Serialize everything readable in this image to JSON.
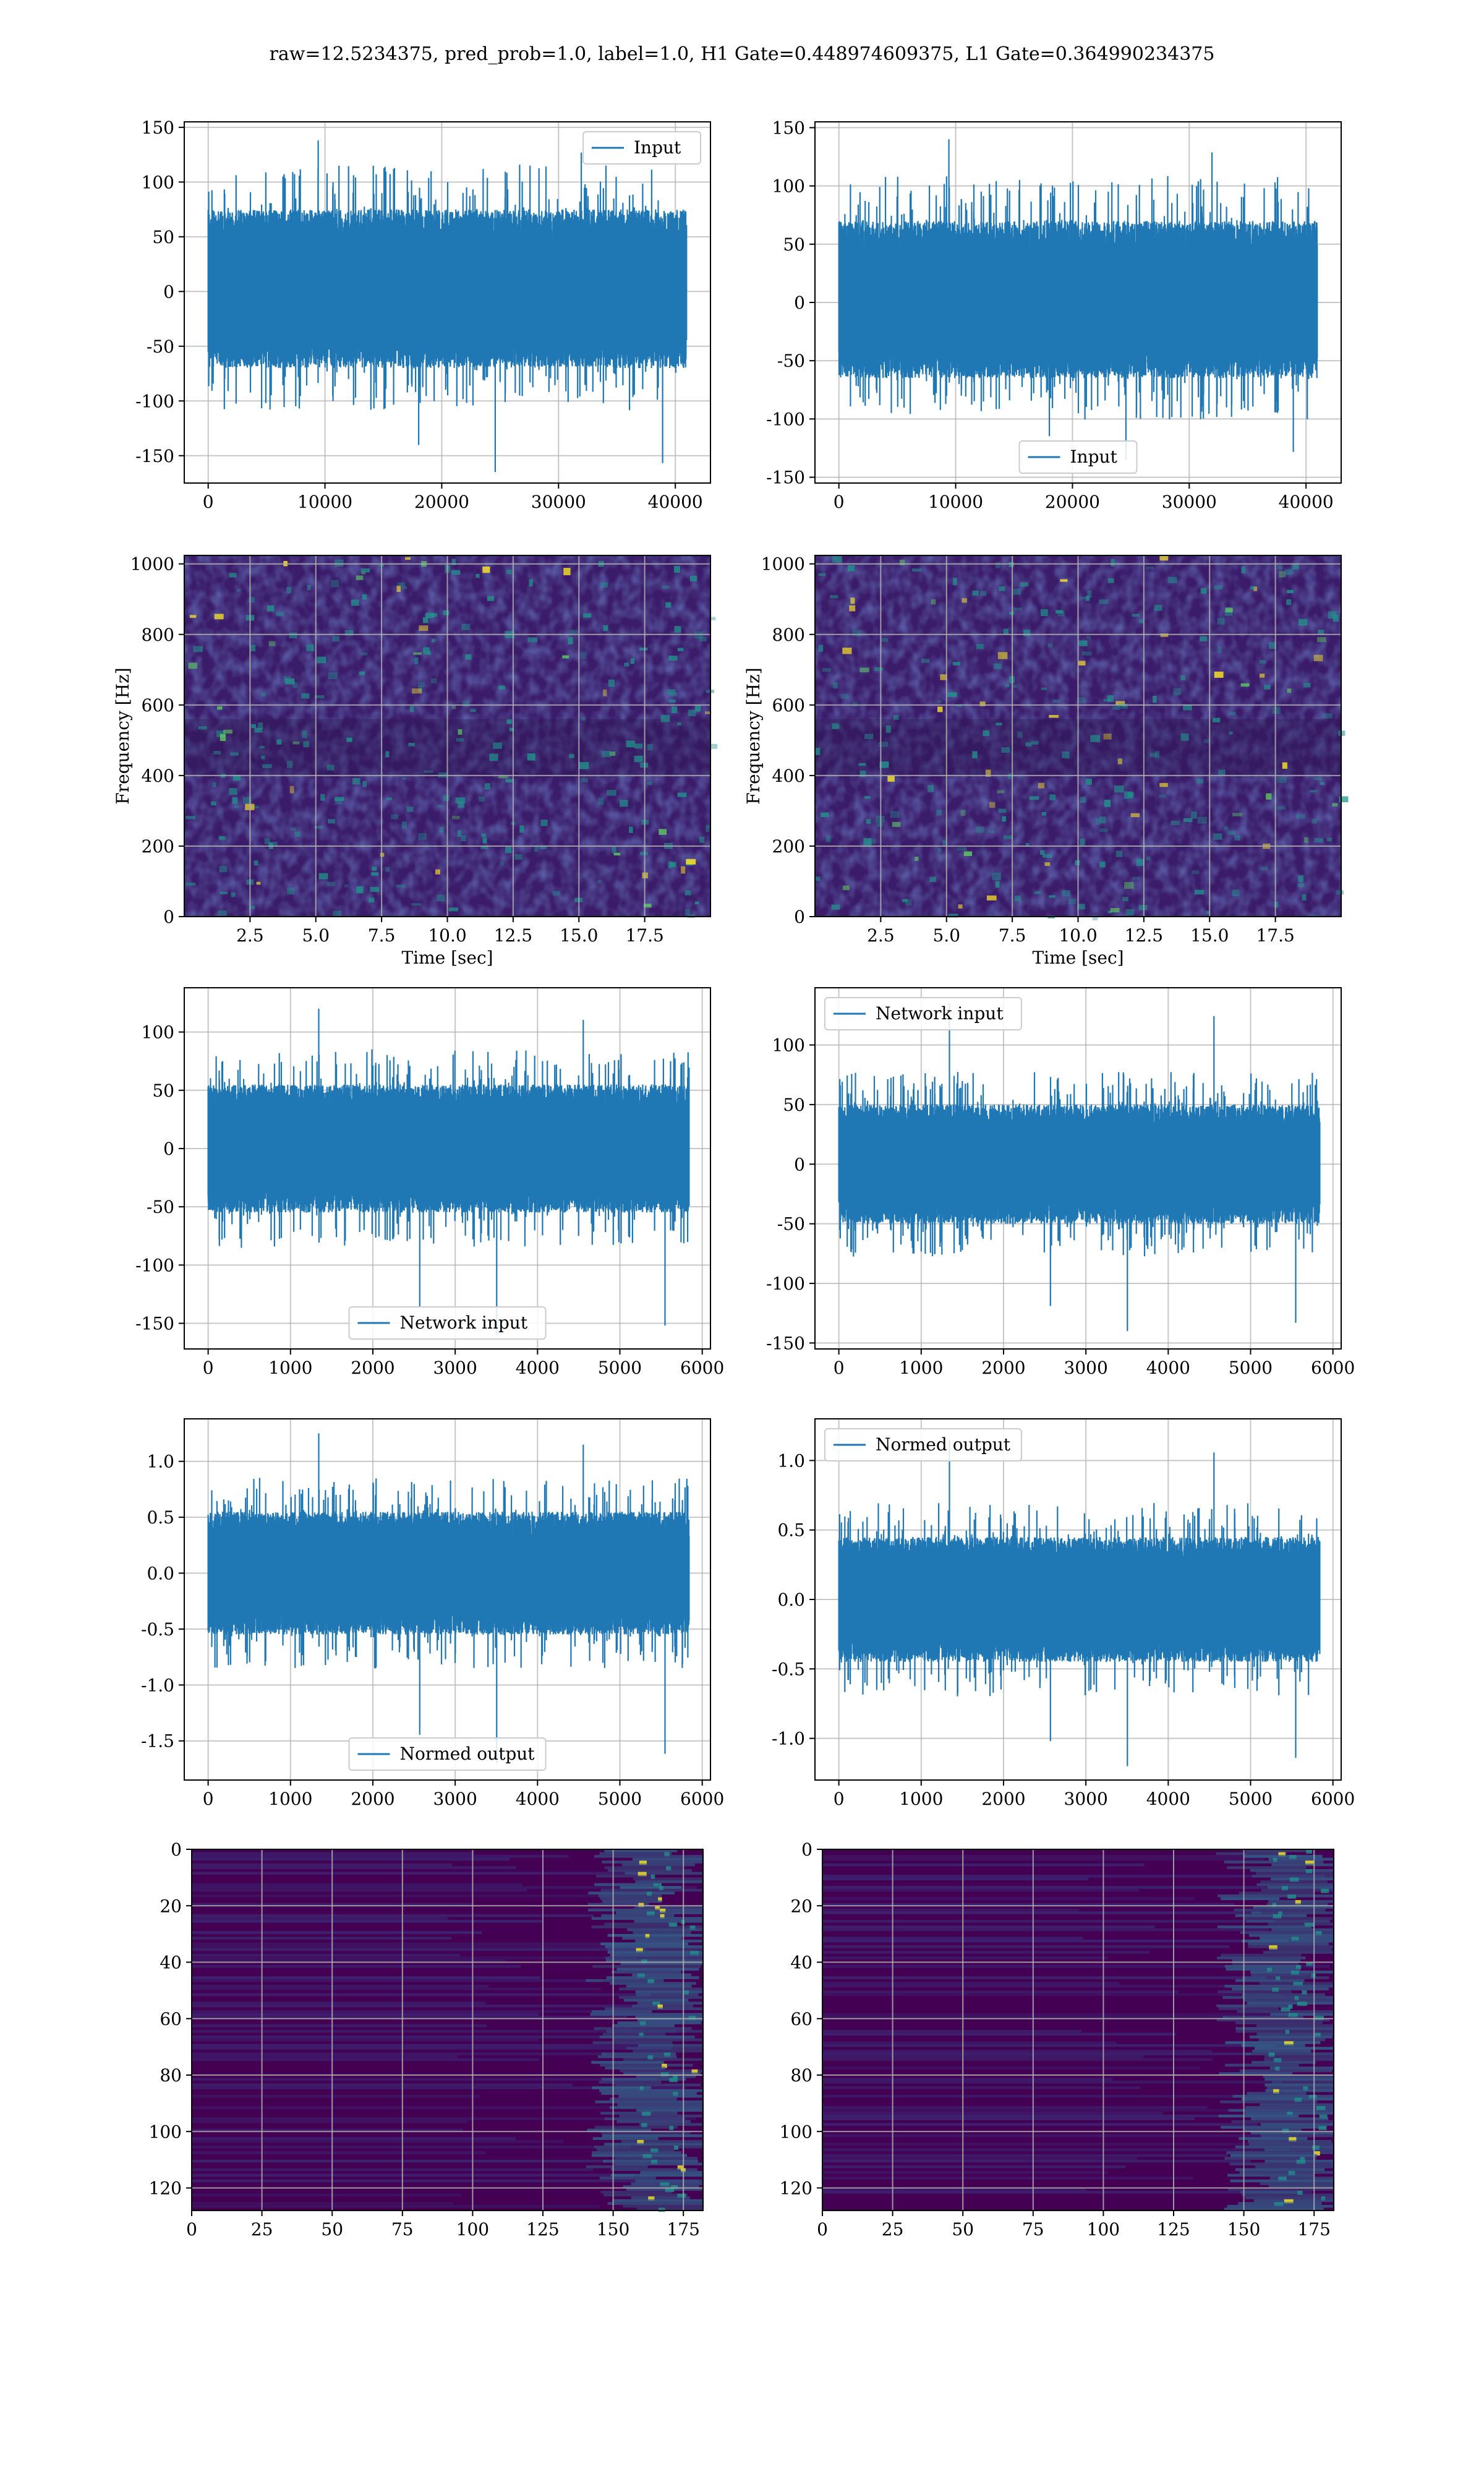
{
  "figure": {
    "suptitle": "raw=12.5234375, pred_prob=1.0, label=1.0, H1 Gate=0.448974609375, L1 Gate=0.364990234375"
  },
  "colors": {
    "line": "#1f77b4",
    "grid": "#b0b0b0",
    "viridis_low": "#440154",
    "viridis_mid": "#21918c",
    "viridis_high": "#fde725"
  },
  "chart_data": [
    {
      "type": "line",
      "id": "h1-input",
      "xlim": [
        -2048,
        43008
      ],
      "ylim": [
        -175,
        155
      ],
      "x_ticks": [
        0,
        10000,
        20000,
        30000,
        40000
      ],
      "y_ticks": [
        -150,
        -100,
        -50,
        0,
        50,
        100,
        150
      ],
      "grid": true,
      "legend": "top-right",
      "series": [
        {
          "name": "Input",
          "n_samples": 40960,
          "x_range": [
            0,
            40960
          ],
          "band": [
            -70,
            75
          ],
          "min": -165,
          "max": 138
        }
      ]
    },
    {
      "type": "line",
      "id": "l1-input",
      "xlim": [
        -2048,
        43008
      ],
      "ylim": [
        -155,
        155
      ],
      "x_ticks": [
        0,
        10000,
        20000,
        30000,
        40000
      ],
      "y_ticks": [
        -150,
        -100,
        -50,
        0,
        50,
        100,
        150
      ],
      "grid": true,
      "legend": "bottom-center",
      "series": [
        {
          "name": "Input",
          "n_samples": 40960,
          "x_range": [
            0,
            40960
          ],
          "band": [
            -65,
            70
          ],
          "min": -135,
          "max": 140
        }
      ]
    },
    {
      "type": "heatmap",
      "id": "h1-spectrogram",
      "xlim": [
        0,
        20
      ],
      "ylim": [
        0,
        1024
      ],
      "x_ticks": [
        2.5,
        5.0,
        7.5,
        10.0,
        12.5,
        15.0,
        17.5
      ],
      "y_ticks": [
        0,
        200,
        400,
        600,
        800,
        1000
      ],
      "xlabel": "Time [sec]",
      "ylabel": "Frequency [Hz]",
      "grid": true
    },
    {
      "type": "heatmap",
      "id": "l1-spectrogram",
      "xlim": [
        0,
        20
      ],
      "ylim": [
        0,
        1024
      ],
      "x_ticks": [
        2.5,
        5.0,
        7.5,
        10.0,
        12.5,
        15.0,
        17.5
      ],
      "y_ticks": [
        0,
        200,
        400,
        600,
        800,
        1000
      ],
      "xlabel": "Time [sec]",
      "ylabel": "Frequency [Hz]",
      "grid": true
    },
    {
      "type": "line",
      "id": "h1-network-input",
      "xlim": [
        -290,
        6100
      ],
      "ylim": [
        -172,
        138
      ],
      "x_ticks": [
        0,
        1000,
        2000,
        3000,
        4000,
        5000,
        6000
      ],
      "y_ticks": [
        -150,
        -100,
        -50,
        0,
        50,
        100
      ],
      "grid": true,
      "legend": "bottom-center",
      "series": [
        {
          "name": "Network input",
          "n_samples": 5800,
          "x_range": [
            0,
            5840
          ],
          "band": [
            -55,
            55
          ],
          "min": -160,
          "max": 120
        }
      ]
    },
    {
      "type": "line",
      "id": "l1-network-input",
      "xlim": [
        -290,
        6100
      ],
      "ylim": [
        -155,
        148
      ],
      "x_ticks": [
        0,
        1000,
        2000,
        3000,
        4000,
        5000,
        6000
      ],
      "y_ticks": [
        -150,
        -100,
        -50,
        0,
        50,
        100
      ],
      "grid": true,
      "legend": "top-left",
      "series": [
        {
          "name": "Network input",
          "n_samples": 5800,
          "x_range": [
            0,
            5840
          ],
          "band": [
            -50,
            50
          ],
          "min": -140,
          "max": 135
        }
      ]
    },
    {
      "type": "line",
      "id": "h1-normed-output",
      "xlim": [
        -290,
        6100
      ],
      "ylim": [
        -1.85,
        1.38
      ],
      "x_ticks": [
        0,
        1000,
        2000,
        3000,
        4000,
        5000,
        6000
      ],
      "y_ticks": [
        -1.5,
        -1.0,
        -0.5,
        0.0,
        0.5,
        1.0
      ],
      "grid": true,
      "legend": "bottom-center",
      "series": [
        {
          "name": "Normed output",
          "n_samples": 5800,
          "x_range": [
            0,
            5840
          ],
          "band": [
            -0.55,
            0.55
          ],
          "min": -1.7,
          "max": 1.25
        }
      ]
    },
    {
      "type": "line",
      "id": "l1-normed-output",
      "xlim": [
        -290,
        6100
      ],
      "ylim": [
        -1.3,
        1.3
      ],
      "x_ticks": [
        0,
        1000,
        2000,
        3000,
        4000,
        5000,
        6000
      ],
      "y_ticks": [
        -1.0,
        -0.5,
        0.0,
        0.5,
        1.0
      ],
      "grid": true,
      "legend": "top-left",
      "series": [
        {
          "name": "Normed output",
          "n_samples": 5800,
          "x_range": [
            0,
            5840
          ],
          "band": [
            -0.45,
            0.45
          ],
          "min": -1.2,
          "max": 1.15
        }
      ]
    },
    {
      "type": "heatmap",
      "id": "h1-feature-map",
      "n_cols": 182,
      "n_rows": 128,
      "xlim": [
        0,
        182
      ],
      "ylim": [
        128,
        0
      ],
      "x_ticks": [
        0,
        25,
        50,
        75,
        100,
        125,
        150,
        175
      ],
      "y_ticks": [
        0,
        20,
        40,
        60,
        80,
        100,
        120
      ],
      "grid": true
    },
    {
      "type": "heatmap",
      "id": "l1-feature-map",
      "n_cols": 182,
      "n_rows": 128,
      "xlim": [
        0,
        182
      ],
      "ylim": [
        128,
        0
      ],
      "x_ticks": [
        0,
        25,
        50,
        75,
        100,
        125,
        150,
        175
      ],
      "y_ticks": [
        0,
        20,
        40,
        60,
        80,
        100,
        120
      ],
      "grid": true
    }
  ]
}
